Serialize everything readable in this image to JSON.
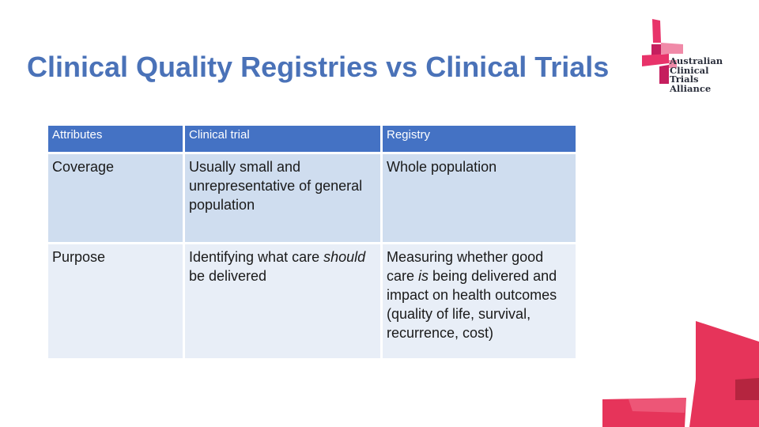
{
  "slide": {
    "title": "Clinical Quality Registries vs Clinical Trials"
  },
  "logo": {
    "lines": [
      "Australian",
      "Clinical",
      "Trials",
      "Alliance"
    ],
    "colors": {
      "pink": "#e8336a",
      "magenta": "#c51e5e",
      "light_pink": "#f08aa8",
      "text": "#2b2f3c"
    }
  },
  "table": {
    "headers": [
      "Attributes",
      "Clinical trial",
      "Registry"
    ],
    "rows": [
      {
        "attribute": "Coverage",
        "trial": "Usually small and unrepresentative of general population",
        "registry": "Whole population"
      },
      {
        "attribute": "Purpose",
        "trial_pre": "Identifying what care",
        "trial_em": "should",
        "trial_post": "be delivered",
        "registry_pre": "Measuring whether good care",
        "registry_em": "is",
        "registry_post": "being delivered and impact on health outcomes (quality of life, survival, recurrence, cost)"
      }
    ],
    "colors": {
      "header": "#4472c4",
      "row_odd": "#cfddef",
      "row_even": "#e8eef7"
    }
  },
  "colors": {
    "title": "#4a72b8",
    "accent_red": "#e6345a",
    "accent_dark": "#b5253f"
  }
}
